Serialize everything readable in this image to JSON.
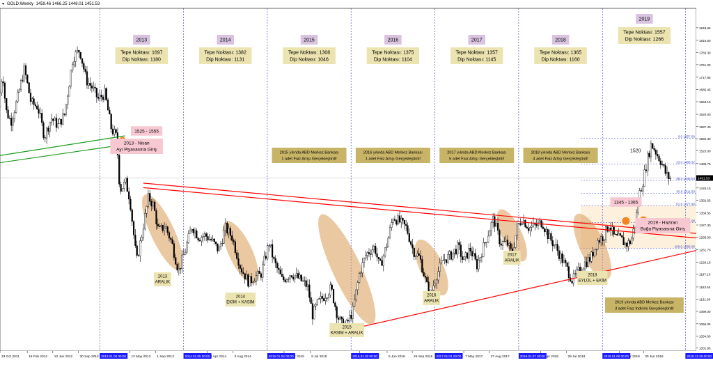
{
  "header": {
    "symbol": "GOLD,Weekly",
    "ohlc": "1459.46 1466.25 1448.01 1451.53"
  },
  "chart_data": {
    "type": "candlestick",
    "timeframe": "Weekly",
    "ylim": [
      994,
      1900
    ],
    "y_ticks": [
      1001.95,
      1034.0,
      1066.05,
      1099.0,
      1131.6,
      1163.5,
      1197.1,
      1229.15,
      1261.7,
      1295.0,
      1327.3,
      1359.55,
      1392.65,
      1425.15,
      1457.55,
      1489.75,
      1523.0,
      1555.3,
      1587.4,
      1620.0,
      1653.15,
      1685.45,
      1717.85,
      1751.0,
      1783.3,
      1815.5,
      1848.65
    ],
    "x_ticks": [
      {
        "label": "23 Oct 2011",
        "t": 2011.81
      },
      {
        "label": "19 Feb 2012",
        "t": 2012.135
      },
      {
        "label": "10 Jun 2012",
        "t": 2012.44
      },
      {
        "label": "30 Sep 2012",
        "t": 2012.745
      },
      {
        "label": "12 May 2013",
        "t": 2013.36
      },
      {
        "label": "1 Sep 2013",
        "t": 2013.665
      },
      {
        "label": "13 Apr 2014",
        "t": 2014.28
      },
      {
        "label": "3 Aug 2014",
        "t": 2014.59
      },
      {
        "label": "15 Mar 2015",
        "t": 2015.2
      },
      {
        "label": "5 Jul 2015",
        "t": 2015.51
      },
      {
        "label": "8 Feb 2016",
        "t": 2016.1
      },
      {
        "label": "5 Jun 2016",
        "t": 2016.43
      },
      {
        "label": "25 Sep 2016",
        "t": 2016.73
      },
      {
        "label": "7 May 2017",
        "t": 2017.345
      },
      {
        "label": "27 Aug 2017",
        "t": 2017.65
      },
      {
        "label": "8 Apr 2018",
        "t": 2018.265
      },
      {
        "label": "29 Jul 2018",
        "t": 2018.57
      },
      {
        "label": "17 Mar 2019",
        "t": 2019.205
      },
      {
        "label": "30 Jun 2019",
        "t": 2019.49
      }
    ],
    "x_ticks_highlight": [
      {
        "label": "2013.01.06 00:00",
        "t": 2013.0
      },
      {
        "label": "2014.01.05 00:00",
        "t": 2014.0
      },
      {
        "label": "2015.01.04 00:00",
        "t": 2015.0
      },
      {
        "label": "2016.01.03 00:00",
        "t": 2016.0
      },
      {
        "label": "2017.01.01 00:00",
        "t": 2017.0
      },
      {
        "label": "2018.01.07 00:00",
        "t": 2018.0
      },
      {
        "label": "2019.01.06 00:00",
        "t": 2019.0
      },
      {
        "label": "2019.12.29 00:00",
        "t": 2019.99
      }
    ],
    "year_lines": [
      2013.0,
      2014.0,
      2015.0,
      2016.0,
      2017.0,
      2018.0,
      2019.0,
      2019.99
    ],
    "price_path": [
      [
        2011.81,
        1640
      ],
      [
        2011.86,
        1735
      ],
      [
        2011.9,
        1630
      ],
      [
        2011.96,
        1600
      ],
      [
        2012.03,
        1655
      ],
      [
        2012.12,
        1740
      ],
      [
        2012.2,
        1650
      ],
      [
        2012.28,
        1640
      ],
      [
        2012.36,
        1560
      ],
      [
        2012.44,
        1610
      ],
      [
        2012.52,
        1590
      ],
      [
        2012.6,
        1620
      ],
      [
        2012.7,
        1770
      ],
      [
        2012.78,
        1790
      ],
      [
        2012.86,
        1710
      ],
      [
        2012.93,
        1690
      ],
      [
        2013.0,
        1660
      ],
      [
        2013.08,
        1675
      ],
      [
        2013.16,
        1580
      ],
      [
        2013.22,
        1560
      ],
      [
        2013.26,
        1420
      ],
      [
        2013.33,
        1440
      ],
      [
        2013.38,
        1395
      ],
      [
        2013.46,
        1230
      ],
      [
        2013.52,
        1300
      ],
      [
        2013.6,
        1400
      ],
      [
        2013.66,
        1380
      ],
      [
        2013.72,
        1310
      ],
      [
        2013.8,
        1325
      ],
      [
        2013.88,
        1280
      ],
      [
        2013.96,
        1205
      ],
      [
        2014.04,
        1260
      ],
      [
        2014.12,
        1325
      ],
      [
        2014.2,
        1295
      ],
      [
        2014.28,
        1300
      ],
      [
        2014.36,
        1285
      ],
      [
        2014.44,
        1260
      ],
      [
        2014.52,
        1320
      ],
      [
        2014.6,
        1295
      ],
      [
        2014.7,
        1215
      ],
      [
        2014.8,
        1175
      ],
      [
        2014.86,
        1190
      ],
      [
        2014.94,
        1195
      ],
      [
        2015.04,
        1280
      ],
      [
        2015.1,
        1230
      ],
      [
        2015.2,
        1180
      ],
      [
        2015.3,
        1200
      ],
      [
        2015.4,
        1185
      ],
      [
        2015.5,
        1165
      ],
      [
        2015.56,
        1090
      ],
      [
        2015.62,
        1120
      ],
      [
        2015.7,
        1140
      ],
      [
        2015.78,
        1160
      ],
      [
        2015.86,
        1085
      ],
      [
        2015.92,
        1060
      ],
      [
        2015.96,
        1062
      ],
      [
        2016.04,
        1100
      ],
      [
        2016.12,
        1200
      ],
      [
        2016.2,
        1250
      ],
      [
        2016.3,
        1270
      ],
      [
        2016.36,
        1215
      ],
      [
        2016.44,
        1270
      ],
      [
        2016.52,
        1350
      ],
      [
        2016.6,
        1335
      ],
      [
        2016.68,
        1320
      ],
      [
        2016.76,
        1260
      ],
      [
        2016.84,
        1240
      ],
      [
        2016.92,
        1170
      ],
      [
        2016.96,
        1140
      ],
      [
        2017.04,
        1195
      ],
      [
        2017.12,
        1235
      ],
      [
        2017.2,
        1245
      ],
      [
        2017.3,
        1270
      ],
      [
        2017.36,
        1230
      ],
      [
        2017.44,
        1265
      ],
      [
        2017.52,
        1220
      ],
      [
        2017.6,
        1270
      ],
      [
        2017.68,
        1320
      ],
      [
        2017.72,
        1345
      ],
      [
        2017.8,
        1280
      ],
      [
        2017.88,
        1280
      ],
      [
        2017.94,
        1250
      ],
      [
        2018.0,
        1320
      ],
      [
        2018.06,
        1345
      ],
      [
        2018.14,
        1320
      ],
      [
        2018.22,
        1325
      ],
      [
        2018.3,
        1335
      ],
      [
        2018.38,
        1295
      ],
      [
        2018.46,
        1270
      ],
      [
        2018.54,
        1235
      ],
      [
        2018.6,
        1210
      ],
      [
        2018.66,
        1180
      ],
      [
        2018.72,
        1200
      ],
      [
        2018.8,
        1225
      ],
      [
        2018.88,
        1240
      ],
      [
        2018.96,
        1285
      ],
      [
        2019.04,
        1300
      ],
      [
        2019.1,
        1330
      ],
      [
        2019.16,
        1295
      ],
      [
        2019.24,
        1290
      ],
      [
        2019.3,
        1275
      ],
      [
        2019.36,
        1285
      ],
      [
        2019.42,
        1345
      ],
      [
        2019.46,
        1410
      ],
      [
        2019.5,
        1440
      ],
      [
        2019.56,
        1505
      ],
      [
        2019.6,
        1540
      ],
      [
        2019.64,
        1528
      ],
      [
        2019.68,
        1510
      ],
      [
        2019.72,
        1495
      ],
      [
        2019.78,
        1460
      ],
      [
        2019.82,
        1451
      ]
    ],
    "trendlines": [
      {
        "name": "support_top",
        "color": "#1a9a1a",
        "from": [
          2011.81,
          1511
        ],
        "to": [
          2013.3,
          1563
        ]
      },
      {
        "name": "support_bottom",
        "color": "#1a9a1a",
        "from": [
          2011.81,
          1492
        ],
        "to": [
          2013.3,
          1540
        ]
      },
      {
        "name": "resistance_upper",
        "color": "#ff0000",
        "from": [
          2013.52,
          1438
        ],
        "to": [
          2020.12,
          1305
        ]
      },
      {
        "name": "resistance_lower",
        "color": "#ff0000",
        "from": [
          2013.52,
          1426
        ],
        "to": [
          2020.12,
          1293
        ]
      },
      {
        "name": "support_rising",
        "color": "#ff0000",
        "from": [
          2015.96,
          1050
        ],
        "to": [
          2020.12,
          1260
        ]
      }
    ],
    "fibonacci": {
      "color": "#3344cc",
      "levels": [
        {
          "label": "0.0 1557.00",
          "price": 1557.0
        },
        {
          "label": "23.6 1488.32",
          "price": 1488.32
        },
        {
          "label": "38.2 1445.04",
          "price": 1445.04
        },
        {
          "label": "50.0 1411.50",
          "price": 1411.5
        },
        {
          "label": "61.8 1377.96",
          "price": 1377.96
        },
        {
          "label": "78.6 1334.08",
          "price": 1334.08
        },
        {
          "label": "100.0 1266.00",
          "price": 1266.0
        }
      ],
      "shaded_from": 1266.0,
      "shaded_to": 1377.96
    },
    "current_price_label": "1451.53",
    "ellipses": [
      {
        "t": 2013.75,
        "price": 1308,
        "rw": 0.14,
        "rh": 110,
        "tilt": -25
      },
      {
        "t": 2014.68,
        "price": 1255,
        "rw": 0.14,
        "rh": 90,
        "tilt": -25
      },
      {
        "t": 2015.95,
        "price": 1210,
        "rw": 0.17,
        "rh": 160,
        "tilt": -25
      },
      {
        "t": 2016.96,
        "price": 1215,
        "rw": 0.14,
        "rh": 80,
        "tilt": -25
      },
      {
        "t": 2017.92,
        "price": 1300,
        "rw": 0.12,
        "rh": 75,
        "tilt": -25
      },
      {
        "t": 2018.88,
        "price": 1270,
        "rw": 0.15,
        "rh": 95,
        "tilt": -25
      }
    ],
    "orange_markers": [
      {
        "t": 2013.27,
        "price": 1550
      },
      {
        "t": 2019.28,
        "price": 1338
      },
      {
        "t": 2019.49,
        "price": 1340
      }
    ]
  },
  "annotations": {
    "years": [
      {
        "year": "2013",
        "tepe": "Tepe Noktası: 1697",
        "dip": "Dip Noktası: 1180"
      },
      {
        "year": "2014",
        "tepe": "Tepe Noktası: 1382",
        "dip": "Dip Noktası: 1131"
      },
      {
        "year": "2015",
        "tepe": "Tepe Noktası: 1308",
        "dip": "Dip Noktası: 1046"
      },
      {
        "year": "2016",
        "tepe": "Tepe Noktası: 1375",
        "dip": "Dip Noktası: 1104"
      },
      {
        "year": "2017",
        "tepe": "Tepe Noktası: 1357",
        "dip": "Dip Noktası: 1145"
      },
      {
        "year": "2018",
        "tepe": "Tepe Noktası: 1365",
        "dip": "Dip Noktası: 1160"
      },
      {
        "year": "2019",
        "tepe": "Tepe Noktası: 1557",
        "dip": "Dip Noktası: 1266"
      }
    ],
    "fed_notes": [
      {
        "line1": "2015 yılında ABD Merkez Bankası",
        "line2": "1 adet Faiz Artışı Gerçekleştirdi!"
      },
      {
        "line1": "2016 yılında ABD Merkez Bankası",
        "line2": "1 adet Faiz Artışı Gerçekleştirdi!"
      },
      {
        "line1": "2017 yılında ABD Merkez Bankası",
        "line2": "5 adet Faiz Artışı Gerçekleştirdi!"
      },
      {
        "line1": "2018 yılında ABD Merkez Bankası",
        "line2": "4 adet Faiz Artışı Gerçekleştirdi!"
      },
      {
        "line1": "2019 yılında ABD Merkez Bankası",
        "line2": "3 adet Faiz İndirimi Gerçekleştirdi!"
      }
    ],
    "bottoms": [
      {
        "year": "2013",
        "period": "ARALIK"
      },
      {
        "year": "2014",
        "period": "EKİM + KASIM"
      },
      {
        "year": "2015",
        "period": "KASIM + ARALIK"
      },
      {
        "year": "2016",
        "period": "ARALIK"
      },
      {
        "year": "2017",
        "period": "ARALIK"
      },
      {
        "year": "2018",
        "period": "EYLÜL + EKİM"
      }
    ],
    "range_2013": "1525 - 1555",
    "bear_entry": {
      "line1": "2013 - Nisan",
      "line2": "Ayı Piyasasına Giriş"
    },
    "range_2019": "1345 - 1365",
    "bull_entry": {
      "line1": "2019 - Haziran",
      "line2": "Boğa Piyasasına Giriş"
    },
    "level_1520": "1520"
  },
  "colors": {
    "year_label_bg": "#d9c3e0",
    "tepe_dip_bg": "#ece4b0",
    "fed_note_bg": "#c8b466",
    "pink_label_bg": "#f7c8d2",
    "ellipse_fill": "#d99a55",
    "orange_marker": "#f07a10",
    "year_line": "#3333cc",
    "candle": "#000000"
  }
}
